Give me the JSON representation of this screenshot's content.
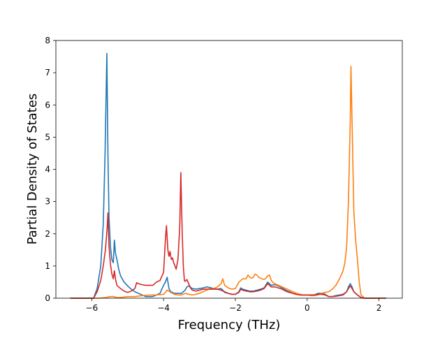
{
  "chart_data": {
    "type": "line",
    "title": "",
    "xlabel": "Frequency (THz)",
    "ylabel": "Partial Density of States",
    "xlim": [
      -7.0,
      2.65
    ],
    "ylim": [
      0,
      8
    ],
    "xticks": [
      -6,
      -4,
      -2,
      0,
      2
    ],
    "yticks": [
      0,
      1,
      2,
      3,
      4,
      5,
      6,
      7,
      8
    ],
    "grid": false,
    "series": [
      {
        "color": "#1f77b4",
        "x": [
          -6.6,
          -6.2,
          -5.95,
          -5.85,
          -5.75,
          -5.68,
          -5.63,
          -5.58,
          -5.55,
          -5.52,
          -5.48,
          -5.44,
          -5.4,
          -5.37,
          -5.34,
          -5.3,
          -5.25,
          -5.2,
          -5.1,
          -5.0,
          -4.9,
          -4.8,
          -4.7,
          -4.6,
          -4.5,
          -4.4,
          -4.3,
          -4.2,
          -4.1,
          -4.0,
          -3.95,
          -3.9,
          -3.85,
          -3.8,
          -3.7,
          -3.6,
          -3.5,
          -3.4,
          -3.35,
          -3.3,
          -3.2,
          -3.1,
          -3.0,
          -2.9,
          -2.8,
          -2.7,
          -2.6,
          -2.5,
          -2.4,
          -2.35,
          -2.3,
          -2.2,
          -2.1,
          -2.0,
          -1.9,
          -1.85,
          -1.8,
          -1.7,
          -1.6,
          -1.5,
          -1.4,
          -1.3,
          -1.2,
          -1.1,
          -1.05,
          -1.0,
          -0.9,
          -0.8,
          -0.7,
          -0.6,
          -0.5,
          -0.4,
          -0.3,
          -0.2,
          -0.1,
          0.0,
          0.1,
          0.2,
          0.3,
          0.4,
          0.5,
          0.6,
          0.7,
          0.8,
          0.9,
          1.0,
          1.1,
          1.15,
          1.2,
          1.25,
          1.3,
          1.4,
          1.5,
          1.6,
          1.8,
          2.0,
          2.2
        ],
        "y": [
          0,
          0,
          0,
          0.3,
          1.0,
          2.3,
          4.5,
          7.6,
          4.5,
          2.5,
          1.6,
          1.2,
          1.1,
          1.8,
          1.4,
          1.2,
          0.9,
          0.7,
          0.5,
          0.38,
          0.28,
          0.2,
          0.15,
          0.1,
          0.05,
          0.05,
          0.05,
          0.1,
          0.15,
          0.4,
          0.5,
          0.65,
          0.3,
          0.2,
          0.15,
          0.15,
          0.15,
          0.25,
          0.35,
          0.38,
          0.3,
          0.28,
          0.3,
          0.32,
          0.35,
          0.33,
          0.3,
          0.28,
          0.3,
          0.25,
          0.18,
          0.15,
          0.12,
          0.12,
          0.2,
          0.32,
          0.28,
          0.25,
          0.22,
          0.22,
          0.25,
          0.28,
          0.32,
          0.5,
          0.45,
          0.4,
          0.42,
          0.38,
          0.32,
          0.25,
          0.2,
          0.15,
          0.12,
          0.1,
          0.1,
          0.1,
          0.1,
          0.1,
          0.15,
          0.15,
          0.12,
          0.05,
          0.05,
          0.08,
          0.1,
          0.12,
          0.2,
          0.35,
          0.45,
          0.35,
          0.2,
          0.1,
          0.02,
          0,
          0,
          0,
          0
        ]
      },
      {
        "color": "#ff7f0e",
        "x": [
          -6.6,
          -6.0,
          -5.8,
          -5.6,
          -5.5,
          -5.4,
          -5.3,
          -5.2,
          -5.0,
          -4.8,
          -4.6,
          -4.4,
          -4.2,
          -4.0,
          -3.9,
          -3.8,
          -3.7,
          -3.6,
          -3.5,
          -3.4,
          -3.3,
          -3.2,
          -3.1,
          -3.0,
          -2.9,
          -2.8,
          -2.7,
          -2.6,
          -2.5,
          -2.4,
          -2.35,
          -2.3,
          -2.2,
          -2.1,
          -2.0,
          -1.9,
          -1.8,
          -1.7,
          -1.65,
          -1.6,
          -1.55,
          -1.5,
          -1.45,
          -1.4,
          -1.35,
          -1.3,
          -1.25,
          -1.2,
          -1.15,
          -1.1,
          -1.05,
          -1.0,
          -0.95,
          -0.9,
          -0.85,
          -0.8,
          -0.7,
          -0.6,
          -0.5,
          -0.4,
          -0.3,
          -0.2,
          -0.1,
          0.0,
          0.1,
          0.2,
          0.3,
          0.4,
          0.5,
          0.6,
          0.7,
          0.8,
          0.9,
          1.0,
          1.05,
          1.1,
          1.15,
          1.2,
          1.22,
          1.25,
          1.3,
          1.35,
          1.4,
          1.45,
          1.5,
          1.6,
          1.8,
          2.0,
          2.2
        ],
        "y": [
          0,
          0,
          0,
          0.02,
          0.05,
          0.05,
          0.02,
          0.02,
          0.05,
          0.05,
          0.08,
          0.1,
          0.1,
          0.12,
          0.25,
          0.18,
          0.12,
          0.1,
          0.1,
          0.15,
          0.12,
          0.1,
          0.12,
          0.15,
          0.2,
          0.25,
          0.3,
          0.3,
          0.35,
          0.45,
          0.6,
          0.4,
          0.32,
          0.28,
          0.3,
          0.5,
          0.6,
          0.6,
          0.72,
          0.65,
          0.62,
          0.65,
          0.75,
          0.72,
          0.65,
          0.62,
          0.6,
          0.58,
          0.62,
          0.7,
          0.72,
          0.55,
          0.48,
          0.45,
          0.42,
          0.4,
          0.35,
          0.3,
          0.25,
          0.2,
          0.15,
          0.12,
          0.1,
          0.1,
          0.08,
          0.08,
          0.1,
          0.15,
          0.18,
          0.2,
          0.28,
          0.4,
          0.6,
          0.85,
          1.1,
          1.6,
          3.0,
          5.5,
          7.2,
          5.5,
          2.7,
          1.8,
          1.2,
          0.5,
          0.1,
          0,
          0,
          0,
          0
        ]
      },
      {
        "color": "#d62728",
        "x": [
          -6.6,
          -6.2,
          -5.95,
          -5.85,
          -5.75,
          -5.68,
          -5.62,
          -5.57,
          -5.55,
          -5.52,
          -5.48,
          -5.44,
          -5.4,
          -5.37,
          -5.34,
          -5.3,
          -5.2,
          -5.1,
          -5.0,
          -4.9,
          -4.8,
          -4.75,
          -4.7,
          -4.6,
          -4.5,
          -4.4,
          -4.3,
          -4.2,
          -4.1,
          -4.0,
          -3.95,
          -3.92,
          -3.88,
          -3.85,
          -3.82,
          -3.8,
          -3.78,
          -3.75,
          -3.72,
          -3.7,
          -3.65,
          -3.6,
          -3.55,
          -3.52,
          -3.48,
          -3.45,
          -3.42,
          -3.4,
          -3.35,
          -3.3,
          -3.25,
          -3.2,
          -3.1,
          -3.0,
          -2.9,
          -2.8,
          -2.7,
          -2.6,
          -2.5,
          -2.4,
          -2.3,
          -2.2,
          -2.1,
          -2.0,
          -1.9,
          -1.85,
          -1.8,
          -1.7,
          -1.6,
          -1.5,
          -1.4,
          -1.3,
          -1.2,
          -1.1,
          -1.05,
          -1.0,
          -0.9,
          -0.8,
          -0.7,
          -0.6,
          -0.5,
          -0.4,
          -0.3,
          -0.2,
          -0.1,
          0.0,
          0.1,
          0.2,
          0.3,
          0.4,
          0.5,
          0.6,
          0.7,
          0.8,
          0.9,
          1.0,
          1.1,
          1.15,
          1.2,
          1.25,
          1.3,
          1.4,
          1.5,
          1.6,
          1.8,
          2.0,
          2.2
        ],
        "y": [
          0,
          0,
          0,
          0.2,
          0.55,
          1.0,
          1.5,
          2.2,
          2.65,
          1.6,
          1.05,
          0.75,
          0.6,
          0.85,
          0.6,
          0.4,
          0.3,
          0.22,
          0.18,
          0.22,
          0.3,
          0.48,
          0.45,
          0.42,
          0.4,
          0.4,
          0.4,
          0.5,
          0.55,
          0.8,
          1.8,
          2.25,
          1.5,
          1.3,
          1.45,
          1.3,
          1.2,
          1.25,
          1.1,
          1.05,
          0.9,
          1.2,
          2.2,
          3.9,
          2.0,
          1.0,
          0.55,
          0.52,
          0.58,
          0.45,
          0.32,
          0.25,
          0.22,
          0.25,
          0.28,
          0.28,
          0.28,
          0.28,
          0.28,
          0.25,
          0.2,
          0.15,
          0.12,
          0.12,
          0.18,
          0.28,
          0.25,
          0.22,
          0.2,
          0.2,
          0.22,
          0.25,
          0.3,
          0.45,
          0.4,
          0.35,
          0.35,
          0.32,
          0.28,
          0.22,
          0.18,
          0.15,
          0.12,
          0.1,
          0.1,
          0.1,
          0.1,
          0.1,
          0.12,
          0.12,
          0.1,
          0.05,
          0.05,
          0.06,
          0.08,
          0.1,
          0.2,
          0.3,
          0.38,
          0.3,
          0.2,
          0.1,
          0.02,
          0,
          0,
          0,
          0
        ]
      }
    ]
  }
}
